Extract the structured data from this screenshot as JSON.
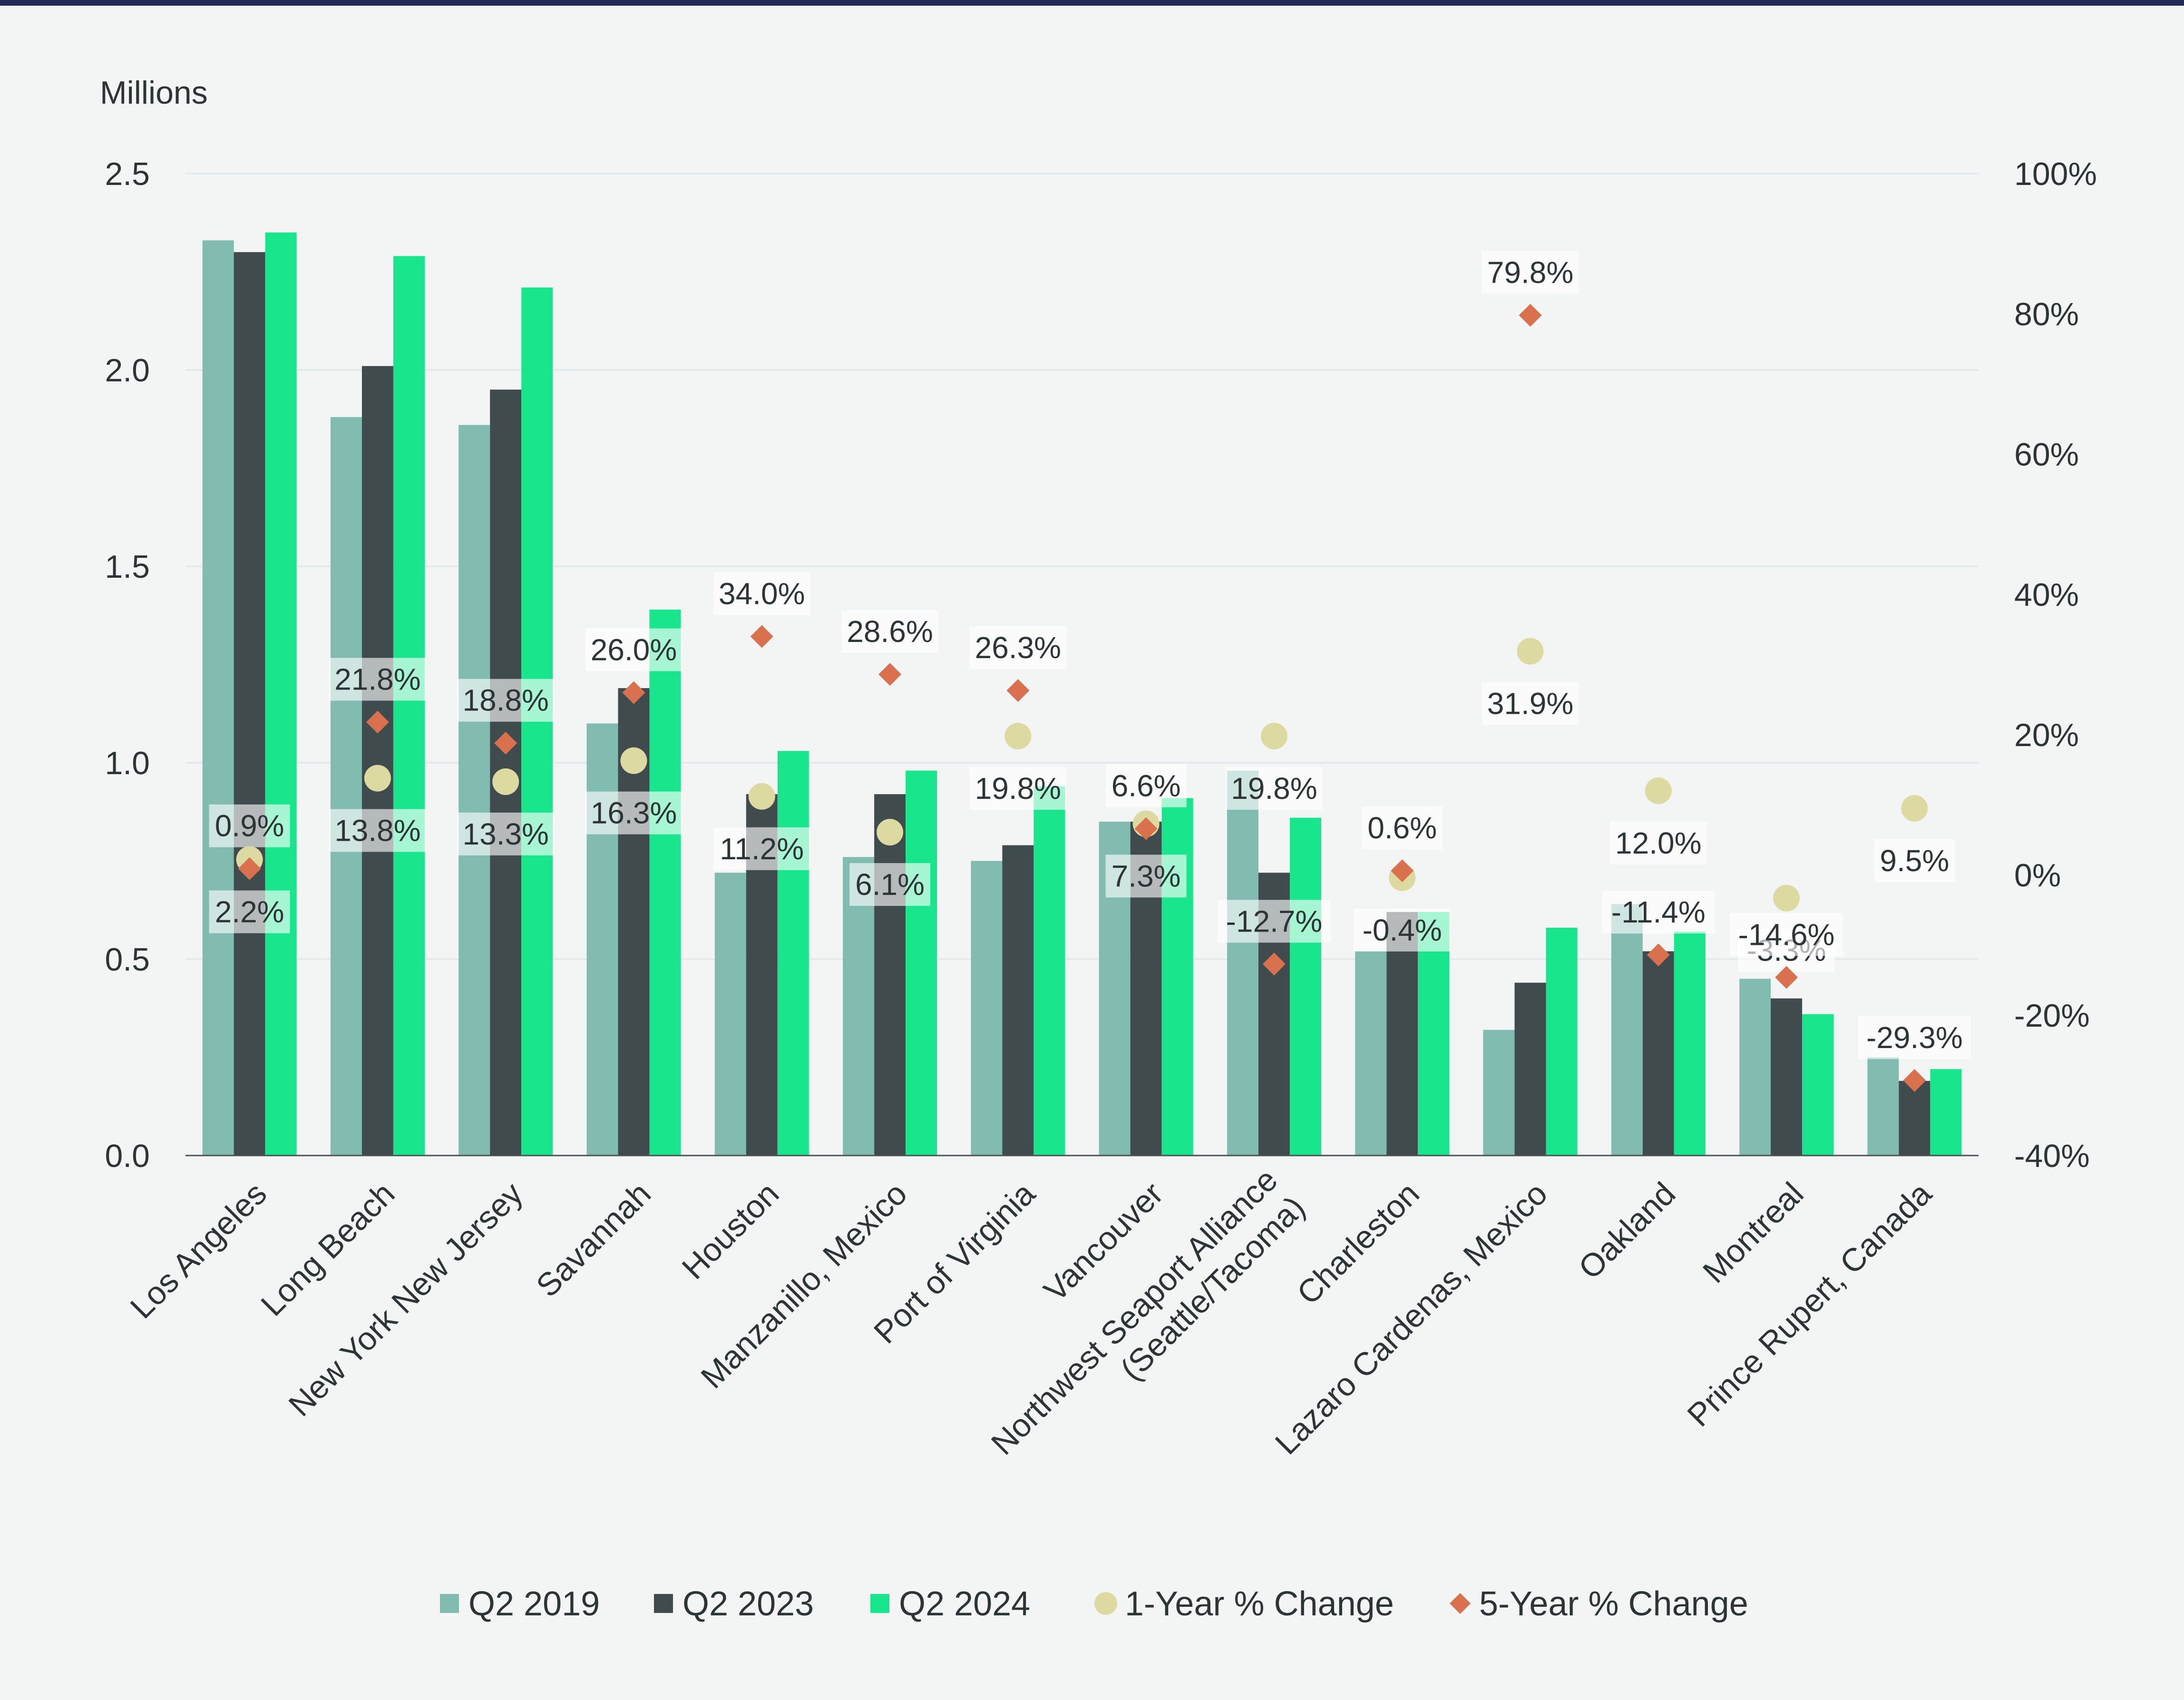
{
  "chart_data": {
    "type": "bar",
    "ylabel_left": "Millions",
    "ylim_left": [
      0,
      2.5
    ],
    "yticks_left": [
      "0.0",
      "0.5",
      "1.0",
      "1.5",
      "2.0",
      "2.5"
    ],
    "ylim_right": [
      -40,
      100
    ],
    "yticks_right": [
      "-40%",
      "-20%",
      "0%",
      "20%",
      "40%",
      "60%",
      "80%",
      "100%"
    ],
    "categories": [
      "Los Angeles",
      "Long Beach",
      "New York New Jersey",
      "Savannah",
      "Houston",
      "Manzanillo, Mexico",
      "Port of Virginia",
      "Vancouver",
      "Northwest Seaport Alliance (Seattle/Tacoma)",
      "Charleston",
      "Lazaro Cardenas, Mexico",
      "Oakland",
      "Montreal",
      "Prince Rupert, Canada"
    ],
    "series": [
      {
        "name": "Q2 2019",
        "kind": "bar",
        "color": "#82bcb0",
        "values": [
          2.33,
          1.88,
          1.86,
          1.1,
          0.72,
          0.76,
          0.75,
          0.85,
          0.98,
          0.52,
          0.32,
          0.64,
          0.45,
          0.25
        ]
      },
      {
        "name": "Q2 2023",
        "kind": "bar",
        "color": "#3f4b4d",
        "values": [
          2.3,
          2.01,
          1.95,
          1.19,
          0.92,
          0.92,
          0.79,
          0.85,
          0.72,
          0.62,
          0.44,
          0.52,
          0.4,
          0.19
        ]
      },
      {
        "name": "Q2 2024",
        "kind": "bar",
        "color": "#19e68c",
        "values": [
          2.35,
          2.29,
          2.21,
          1.39,
          1.03,
          0.98,
          0.94,
          0.91,
          0.86,
          0.62,
          0.58,
          0.57,
          0.36,
          0.22
        ]
      },
      {
        "name": "1-Year % Change",
        "kind": "circle",
        "color": "#dcd9a1",
        "axis": "right",
        "values": [
          2.2,
          13.8,
          13.3,
          16.3,
          11.2,
          6.1,
          19.8,
          7.3,
          19.8,
          -0.4,
          31.9,
          12.0,
          -3.3,
          9.5
        ],
        "labels": [
          "2.2%",
          "13.8%",
          "13.3%",
          "16.3%",
          "11.2%",
          "6.1%",
          "19.8%",
          "7.3%",
          "19.8%",
          "-0.4%",
          "31.9%",
          "12.0%",
          "-3.3%",
          "9.5%"
        ]
      },
      {
        "name": "5-Year % Change",
        "kind": "diamond",
        "color": "#d9714e",
        "axis": "right",
        "values": [
          0.9,
          21.8,
          18.8,
          26.0,
          34.0,
          28.6,
          26.3,
          6.6,
          -12.7,
          0.6,
          79.8,
          -11.4,
          -14.6,
          -29.3
        ],
        "labels": [
          "0.9%",
          "21.8%",
          "18.8%",
          "26.0%",
          "34.0%",
          "28.6%",
          "26.3%",
          "6.6%",
          "-12.7%",
          "0.6%",
          "79.8%",
          "-11.4%",
          "-14.6%",
          "-29.3%"
        ]
      }
    ],
    "legend_position": "bottom",
    "grid": true
  }
}
